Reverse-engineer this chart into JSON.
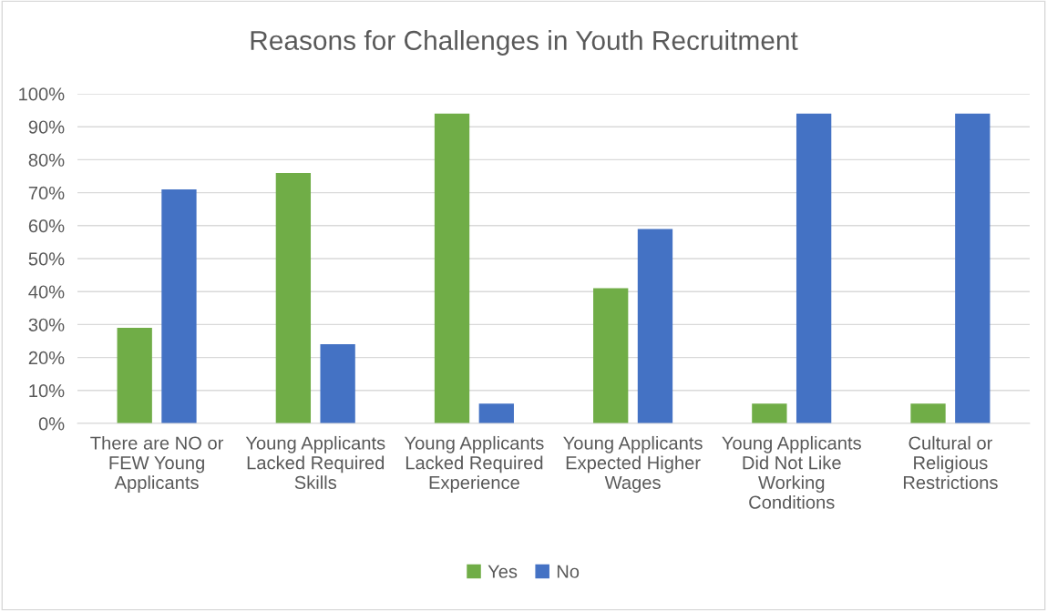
{
  "chart_data": {
    "type": "bar",
    "title": "Reasons for Challenges in Youth Recruitment",
    "categories": [
      "There are NO or FEW Young Applicants",
      "Young Applicants Lacked Required Skills",
      "Young Applicants Lacked Required Experience",
      "Young Applicants Expected Higher Wages",
      "Young Applicants Did Not Like Working Conditions",
      "Cultural or Religious Restrictions"
    ],
    "series": [
      {
        "name": "Yes",
        "color": "#70ad47",
        "values": [
          29,
          76,
          94,
          41,
          6,
          6
        ]
      },
      {
        "name": "No",
        "color": "#4472c4",
        "values": [
          71,
          24,
          6,
          59,
          94,
          94
        ]
      }
    ],
    "ylim": [
      0,
      100
    ],
    "yticks": [
      {
        "value": 0,
        "label": "0%"
      },
      {
        "value": 10,
        "label": "10%"
      },
      {
        "value": 20,
        "label": "20%"
      },
      {
        "value": 30,
        "label": "30%"
      },
      {
        "value": 40,
        "label": "40%"
      },
      {
        "value": 50,
        "label": "50%"
      },
      {
        "value": 60,
        "label": "60%"
      },
      {
        "value": 70,
        "label": "70%"
      },
      {
        "value": 80,
        "label": "80%"
      },
      {
        "value": 90,
        "label": "90%"
      },
      {
        "value": 100,
        "label": "100%"
      }
    ],
    "grid": "y",
    "legend": "bottom"
  }
}
